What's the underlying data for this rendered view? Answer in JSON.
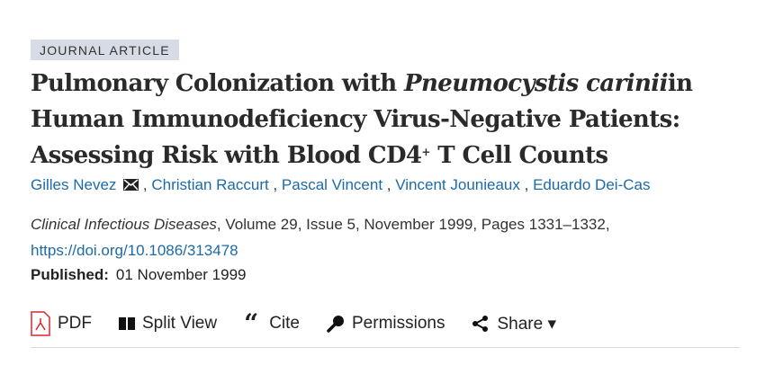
{
  "article_type": "JOURNAL ARTICLE",
  "title": {
    "part1": "Pulmonary Colonization with ",
    "italic": "Pneumocystis carinii",
    "part2": "in Human Immunodeficiency Virus-Negative Patients: Assessing Risk with Blood CD4",
    "sup": "+",
    "part3": " T Cell Counts"
  },
  "authors": [
    "Gilles Nevez",
    "Christian Raccurt",
    "Pascal Vincent",
    "Vincent Jounieaux",
    "Eduardo Dei-Cas"
  ],
  "citation": {
    "journal": "Clinical Infectious Diseases",
    "details": ", Volume 29, Issue 5, November 1999, Pages 1331–1332,",
    "doi": "https://doi.org/10.1086/313478"
  },
  "published": {
    "label": "Published:",
    "date": "01 November 1999"
  },
  "toolbar": {
    "pdf": "PDF",
    "split_view": "Split View",
    "cite": "Cite",
    "permissions": "Permissions",
    "share": "Share ▾"
  },
  "colors": {
    "link": "#1c6aa8",
    "badge_bg": "#d6dbe6",
    "pdf_icon": "#d8262e"
  }
}
